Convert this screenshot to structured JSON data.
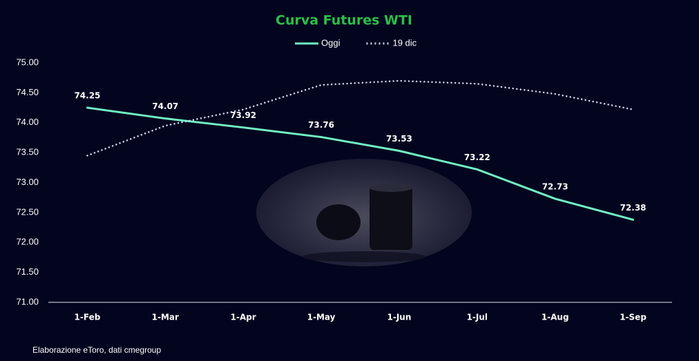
{
  "chart_data": {
    "type": "line",
    "title": "Curva Futures WTI",
    "categories": [
      "1-Feb",
      "1-Mar",
      "1-Apr",
      "1-May",
      "1-Jun",
      "1-Jul",
      "1-Aug",
      "1-Sep"
    ],
    "series": [
      {
        "name": "Oggi",
        "color": "#72f2c4",
        "style": "solid",
        "data_labels": true,
        "values": [
          74.25,
          74.07,
          73.92,
          73.76,
          73.53,
          73.22,
          72.73,
          72.38
        ]
      },
      {
        "name": "19 dic",
        "color": "#d4d4f2",
        "style": "dotted",
        "data_labels": false,
        "values": [
          73.45,
          73.95,
          74.22,
          74.63,
          74.7,
          74.65,
          74.48,
          74.22
        ]
      }
    ],
    "ylim": [
      71,
      75
    ],
    "yticks": [
      {
        "value": 71,
        "label": "71.00"
      },
      {
        "value": 71.5,
        "label": "71.50"
      },
      {
        "value": 72,
        "label": "72.00"
      },
      {
        "value": 72.5,
        "label": "72.50"
      },
      {
        "value": 73,
        "label": "73.00"
      },
      {
        "value": 73.5,
        "label": "73.50"
      },
      {
        "value": 74,
        "label": "74.00"
      },
      {
        "value": 74.5,
        "label": "74.50"
      },
      {
        "value": 75,
        "label": "75.00"
      }
    ],
    "grid": false,
    "legend": "top",
    "source": "Elaborazione eToro, dati cmegroup"
  }
}
